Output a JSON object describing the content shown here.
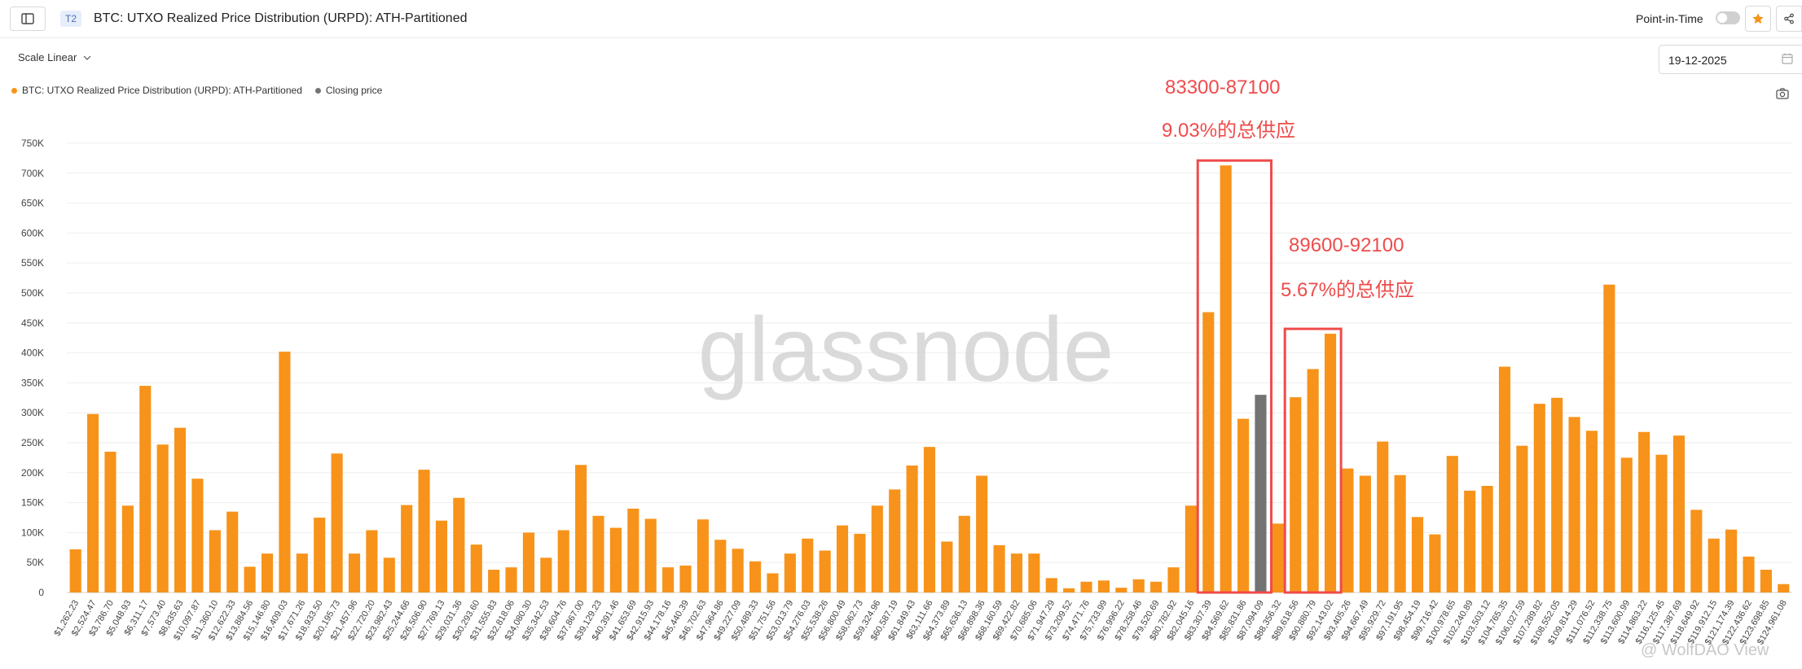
{
  "header": {
    "tier_badge": "T2",
    "title": "BTC: UTXO Realized Price Distribution (URPD): ATH-Partitioned",
    "point_in_time_label": "Point-in-Time",
    "point_in_time_enabled": false
  },
  "controls": {
    "scale_label": "Scale Linear",
    "date_value": "19-12-2025"
  },
  "icons": [
    "sidebar-toggle-icon",
    "star-icon",
    "share-icon",
    "chevron-down-icon",
    "calendar-icon",
    "camera-icon"
  ],
  "colors": {
    "bar": "#f7931a",
    "closing_bar": "#737373",
    "annotation": "#ef4b4b",
    "star_button": "#f7931a",
    "watermark": "#d4d4d4"
  },
  "watermark": "glassnode",
  "footer_watermark": "@ WolfDAO View",
  "annotations": [
    {
      "range": "83300-87100",
      "share": "9.03%的总供应"
    },
    {
      "range": "89600-92100",
      "share": "5.67%的总供应"
    }
  ],
  "chart_data": {
    "type": "bar",
    "legend": [
      {
        "name": "BTC: UTXO Realized Price Distribution (URPD): ATH-Partitioned",
        "color": "#f7931a"
      },
      {
        "name": "Closing price",
        "color": "#737373"
      }
    ],
    "legend_position": "top-left",
    "grid": true,
    "ylim": [
      0,
      750000
    ],
    "y_ticks": [
      "0",
      "50K",
      "100K",
      "150K",
      "200K",
      "250K",
      "300K",
      "350K",
      "400K",
      "450K",
      "500K",
      "550K",
      "600K",
      "650K",
      "700K",
      "750K"
    ],
    "x_labels": [
      "$1,262.23",
      "$2,524.47",
      "$3,786.70",
      "$5,048.93",
      "$6,311.17",
      "$7,573.40",
      "$8,835.63",
      "$10,097.87",
      "$11,360.10",
      "$12,622.33",
      "$13,884.56",
      "$15,146.80",
      "$16,409.03",
      "$17,671.26",
      "$18,933.50",
      "$20,195.73",
      "$21,457.96",
      "$22,720.20",
      "$23,982.43",
      "$25,244.66",
      "$26,506.90",
      "$27,769.13",
      "$29,031.36",
      "$30,293.60",
      "$31,555.83",
      "$32,818.06",
      "$34,080.30",
      "$35,342.53",
      "$36,604.76",
      "$37,867.00",
      "$39,129.23",
      "$40,391.46",
      "$41,653.69",
      "$42,915.93",
      "$44,178.16",
      "$45,440.39",
      "$46,702.63",
      "$47,964.86",
      "$49,227.09",
      "$50,489.33",
      "$51,751.56",
      "$53,013.79",
      "$54,276.03",
      "$55,538.26",
      "$56,800.49",
      "$58,062.73",
      "$59,324.96",
      "$60,587.19",
      "$61,849.43",
      "$63,111.66",
      "$64,373.89",
      "$65,636.13",
      "$66,898.36",
      "$68,160.59",
      "$69,422.82",
      "$70,685.06",
      "$71,947.29",
      "$73,209.52",
      "$74,471.76",
      "$75,733.99",
      "$76,996.22",
      "$78,258.46",
      "$79,520.69",
      "$80,782.92",
      "$82,045.16",
      "$83,307.39",
      "$84,569.62",
      "$85,831.86",
      "$87,094.09",
      "$88,356.32",
      "$89,618.56",
      "$90,880.79",
      "$92,143.02",
      "$93,405.26",
      "$94,667.49",
      "$95,929.72",
      "$97,191.95",
      "$98,454.19",
      "$99,716.42",
      "$100,978.65",
      "$102,240.89",
      "$103,503.12",
      "$104,765.35",
      "$106,027.59",
      "$107,289.82",
      "$108,552.05",
      "$109,814.29",
      "$111,076.52",
      "$112,338.75",
      "$113,600.99",
      "$114,863.22",
      "$116,125.45",
      "$117,387.69",
      "$118,649.92",
      "$119,912.15",
      "$121,174.39",
      "$122,436.62",
      "$123,698.85",
      "$124,961.08"
    ],
    "values": [
      72000,
      298000,
      235000,
      145000,
      345000,
      247000,
      275000,
      190000,
      104000,
      135000,
      43000,
      65000,
      402000,
      65000,
      125000,
      232000,
      65000,
      104000,
      58000,
      146000,
      205000,
      120000,
      158000,
      80000,
      38000,
      42000,
      100000,
      58000,
      104000,
      213000,
      128000,
      108000,
      140000,
      123000,
      42000,
      45000,
      122000,
      88000,
      73000,
      52000,
      32000,
      65000,
      90000,
      70000,
      112000,
      98000,
      145000,
      172000,
      212000,
      243000,
      85000,
      128000,
      195000,
      79000,
      65000,
      65000,
      24000,
      7000,
      18000,
      20000,
      8000,
      22000,
      18000,
      42000,
      145000,
      468000,
      713000,
      290000,
      330000,
      115000,
      326000,
      373000,
      432000,
      207000,
      195000,
      252000,
      196000,
      126000,
      97000,
      228000,
      170000,
      178000,
      377000,
      245000,
      315000,
      325000,
      293000,
      270000,
      514000,
      225000,
      268000,
      230000,
      262000,
      138000,
      90000,
      105000,
      60000,
      38000,
      14000
    ],
    "closing_index": 68,
    "highlight_ranges": [
      [
        65,
        68
      ],
      [
        70,
        72
      ]
    ]
  }
}
